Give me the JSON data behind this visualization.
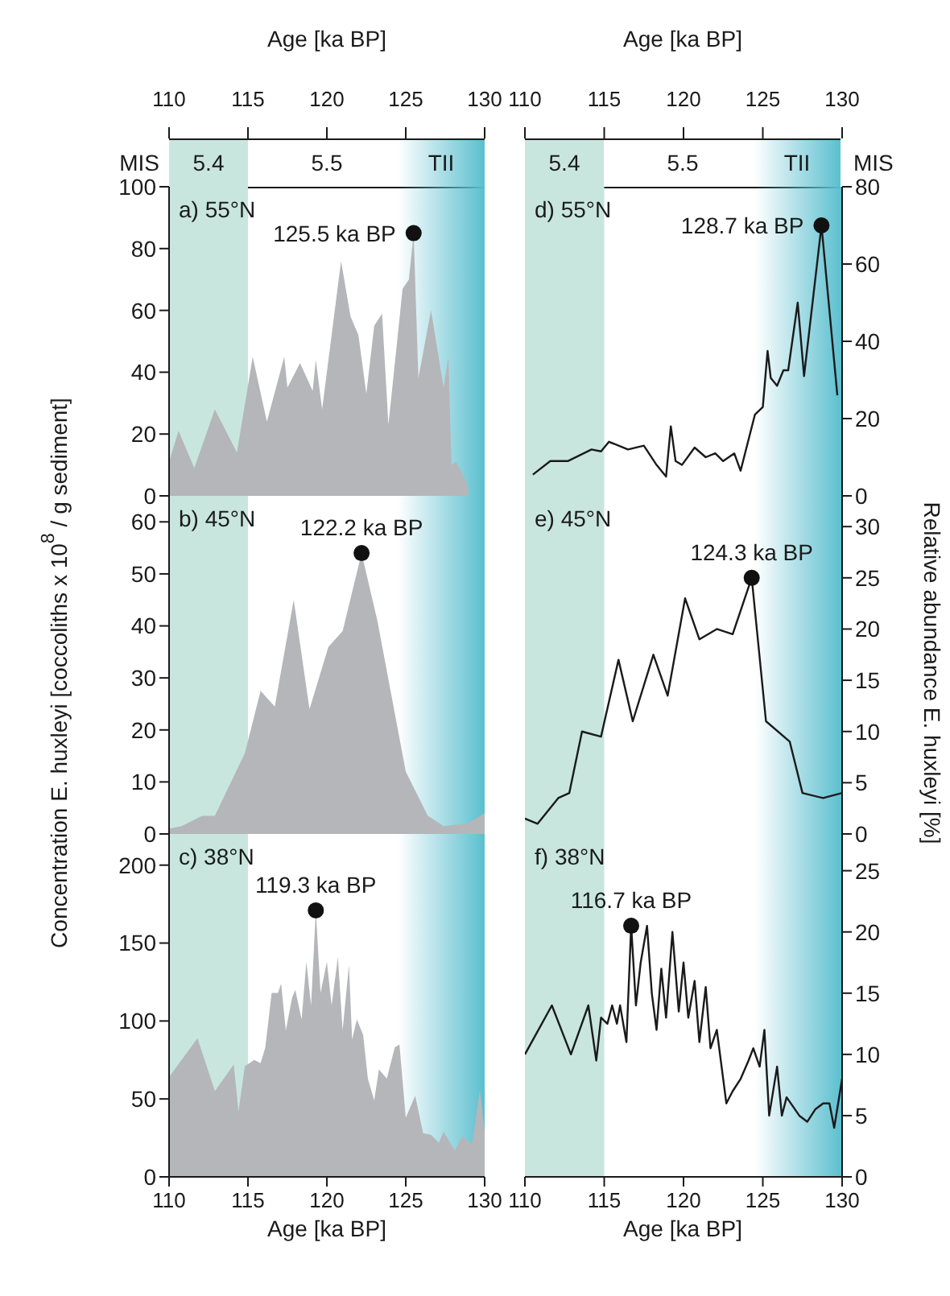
{
  "chart_data": [
    {
      "type": "area",
      "title": "a) 55°N",
      "xlim": [
        110,
        130
      ],
      "xticks": [
        110,
        115,
        120,
        125,
        130
      ],
      "xlabel": "Age [ka BP]",
      "ylim": [
        0,
        100
      ],
      "yticks": [
        0,
        20,
        40,
        60,
        80,
        100
      ],
      "series": [
        {
          "color": "#b5b6b9",
          "x": [
            110,
            110.6,
            111.6,
            112.9,
            114.3,
            115.3,
            116.2,
            117.3,
            117.5,
            118.3,
            119.1,
            119.3,
            119.7,
            120.9,
            121.5,
            122.0,
            122.5,
            123.0,
            123.5,
            123.9,
            124.8,
            125.2,
            125.5,
            125.8,
            126.6,
            127.4,
            127.7,
            127.9,
            128.2,
            128.9,
            129.0
          ],
          "values": [
            11,
            21,
            9,
            28,
            14,
            45,
            24,
            45,
            35,
            43,
            34,
            44,
            28,
            76,
            58,
            52,
            33,
            55,
            59,
            23,
            67,
            70,
            85,
            38,
            60,
            35,
            45,
            10,
            11,
            4,
            0
          ]
        }
      ],
      "bands": [
        {
          "axis": "x",
          "from": 110,
          "to": 115,
          "label": "5.4",
          "color": "#c8e6dd"
        },
        {
          "axis": "x",
          "from": 124.5,
          "to": 130,
          "label": "TII",
          "color": "#5bbfcf"
        }
      ],
      "annotations": [
        "MIS",
        "5.5",
        {
          "text": "125.5 ka BP",
          "x": 125.5,
          "y": 85
        }
      ]
    },
    {
      "type": "area",
      "title": "b) 45°N",
      "xlim": [
        110,
        130
      ],
      "ylim": [
        0,
        65
      ],
      "yticks": [
        0,
        10,
        20,
        30,
        40,
        50,
        60
      ],
      "tick_labels": "y",
      "ylabel": "Concentration E. huxleyi [coccoliths x 10$^{8}$ / g sediment]",
      "series": [
        {
          "color": "#b5b6b9",
          "x": [
            110,
            110.8,
            112.1,
            112.9,
            114.8,
            115.8,
            116.7,
            117.9,
            118.9,
            120.1,
            121.0,
            122.2,
            123.2,
            125.0,
            126.4,
            127.4,
            128.9,
            130
          ],
          "values": [
            1,
            1.5,
            3.5,
            3.5,
            15.5,
            27.5,
            24.5,
            45,
            24,
            36,
            39,
            54,
            41,
            12,
            3.5,
            1.5,
            2,
            4
          ]
        }
      ],
      "bands": [
        {
          "axis": "x",
          "from": 110,
          "to": 115,
          "color": "#c8e6dd"
        },
        {
          "axis": "x",
          "from": 124.5,
          "to": 130,
          "color": "#5bbfcf"
        }
      ],
      "annotations": [
        {
          "text": "122.2 ka BP",
          "x": 122.2,
          "y": 54
        }
      ]
    },
    {
      "type": "area",
      "title": "c) 38°N",
      "xlim": [
        110,
        130
      ],
      "xticks": [
        110,
        115,
        120,
        125,
        130
      ],
      "xlabel": "Age [ka BP]",
      "ylim": [
        0,
        220
      ],
      "yticks": [
        0,
        50,
        100,
        150,
        200
      ],
      "series": [
        {
          "color": "#b5b6b9",
          "x": [
            110,
            111.8,
            112.9,
            114.1,
            114.4,
            114.8,
            115.4,
            115.8,
            116.1,
            116.5,
            116.9,
            117.1,
            117.4,
            117.8,
            118.0,
            118.4,
            118.7,
            119.0,
            119.3,
            119.6,
            120.0,
            120.3,
            120.7,
            121.0,
            121.4,
            121.6,
            121.9,
            122.3,
            122.6,
            123.0,
            123.3,
            123.8,
            124.3,
            124.6,
            125.0,
            125.6,
            126.1,
            126.6,
            127.1,
            127.4,
            128.1,
            128.6,
            129.2,
            129.7,
            130
          ],
          "values": [
            64,
            89,
            55,
            72,
            42,
            71,
            75,
            73,
            83,
            118,
            118,
            124,
            94,
            115,
            120,
            101,
            138,
            110,
            171,
            118,
            138,
            110,
            141,
            94,
            136,
            88,
            101,
            91,
            63,
            49,
            69,
            63,
            83,
            85,
            38,
            52,
            28,
            27,
            22,
            29,
            17,
            26,
            21,
            56,
            29
          ]
        }
      ],
      "bands": [
        {
          "axis": "x",
          "from": 110,
          "to": 115,
          "color": "#c8e6dd"
        },
        {
          "axis": "x",
          "from": 124.5,
          "to": 130,
          "color": "#5bbfcf"
        }
      ],
      "annotations": [
        {
          "text": "119.3 ka BP",
          "x": 119.3,
          "y": 171
        }
      ]
    },
    {
      "type": "line",
      "title": "d) 55°N",
      "xlim": [
        110,
        130
      ],
      "xticks": [
        110,
        115,
        120,
        125,
        130
      ],
      "xlabel": "Age [ka BP]",
      "ylim": [
        0,
        80
      ],
      "yticks": [
        0,
        20,
        40,
        60,
        80
      ],
      "series": [
        {
          "color": "#1a1a1a",
          "x": [
            110.5,
            111.6,
            112.7,
            114.2,
            114.8,
            115.3,
            116.5,
            117.5,
            118.3,
            118.9,
            119.2,
            119.5,
            119.9,
            120.7,
            121.4,
            122.0,
            122.5,
            123.2,
            123.6,
            124.5,
            125.0,
            125.3,
            125.5,
            125.9,
            126.3,
            126.6,
            127.2,
            127.6,
            128.7,
            129.7
          ],
          "values": [
            5.5,
            9,
            9,
            12,
            11.5,
            14,
            12,
            13,
            8,
            5,
            18,
            9,
            8,
            12.5,
            10,
            11,
            9,
            11,
            6.5,
            21,
            23,
            37.5,
            30.5,
            28.5,
            32.5,
            32.5,
            50,
            31,
            70,
            26
          ]
        }
      ],
      "bands": [
        {
          "axis": "x",
          "from": 110,
          "to": 115,
          "label": "5.4",
          "color": "#c8e6dd"
        },
        {
          "axis": "x",
          "from": 124.5,
          "to": 130,
          "label": "TII",
          "color": "#5bbfcf"
        }
      ],
      "annotations": [
        "MIS",
        "5.5",
        {
          "text": "128.7 ka BP",
          "x": 128.7,
          "y": 70
        }
      ]
    },
    {
      "type": "line",
      "title": "e) 45°N",
      "xlim": [
        110,
        130
      ],
      "ylim": [
        0,
        33
      ],
      "yticks": [
        0,
        5,
        10,
        15,
        20,
        25,
        30
      ],
      "tick_labels": "y",
      "ylabel": "Relative abundance E. huxleyi [%]",
      "series": [
        {
          "color": "#1a1a1a",
          "x": [
            110,
            110.8,
            112.1,
            112.8,
            113.6,
            114.8,
            115.9,
            116.8,
            118.1,
            119.0,
            120.1,
            121.0,
            122.1,
            123.1,
            124.3,
            125.2,
            126.7,
            127.5,
            128.8,
            130
          ],
          "values": [
            1.5,
            1,
            3.5,
            4,
            10,
            9.5,
            17,
            11,
            17.5,
            13.5,
            23,
            19,
            20,
            19.5,
            25,
            11,
            9,
            4,
            3.5,
            4
          ]
        }
      ],
      "bands": [
        {
          "axis": "x",
          "from": 110,
          "to": 115,
          "color": "#c8e6dd"
        },
        {
          "axis": "x",
          "from": 124.5,
          "to": 130,
          "color": "#5bbfcf"
        }
      ],
      "annotations": [
        {
          "text": "124.3 ka BP",
          "x": 124.3,
          "y": 25
        }
      ]
    },
    {
      "type": "line",
      "title": "f) 38°N",
      "xlim": [
        110,
        130
      ],
      "xticks": [
        110,
        115,
        120,
        125,
        130
      ],
      "xlabel": "Age [ka BP]",
      "ylim": [
        0,
        28
      ],
      "yticks": [
        0,
        5,
        10,
        15,
        20,
        25
      ],
      "series": [
        {
          "color": "#1a1a1a",
          "x": [
            110,
            111.7,
            112.9,
            114.0,
            114.5,
            114.8,
            115.2,
            115.5,
            115.8,
            116.0,
            116.4,
            116.7,
            117.0,
            117.3,
            117.7,
            118.0,
            118.3,
            118.6,
            118.9,
            119.3,
            119.7,
            120.0,
            120.3,
            120.7,
            121.0,
            121.4,
            121.7,
            122.1,
            122.7,
            123.1,
            123.6,
            124.1,
            124.4,
            124.8,
            125.1,
            125.4,
            125.9,
            126.2,
            126.5,
            127.3,
            127.8,
            128.3,
            128.8,
            129.2,
            129.5,
            130
          ],
          "values": [
            10,
            14,
            10,
            14,
            9.5,
            13,
            12.5,
            14,
            12.5,
            14,
            11,
            20.5,
            14,
            17.5,
            20.5,
            15,
            12,
            17,
            13,
            20,
            13.5,
            17.5,
            13,
            16,
            11,
            15.5,
            10.5,
            12,
            6,
            7,
            8,
            9.5,
            10.5,
            9,
            12,
            5,
            9,
            5,
            6.5,
            5,
            4.5,
            5.5,
            6,
            6,
            4,
            8
          ]
        }
      ],
      "bands": [
        {
          "axis": "x",
          "from": 110,
          "to": 115,
          "color": "#c8e6dd"
        },
        {
          "axis": "x",
          "from": 124.5,
          "to": 130,
          "color": "#5bbfcf"
        }
      ],
      "annotations": [
        {
          "text": "116.7 ka BP",
          "x": 116.7,
          "y": 20.5
        }
      ]
    }
  ]
}
